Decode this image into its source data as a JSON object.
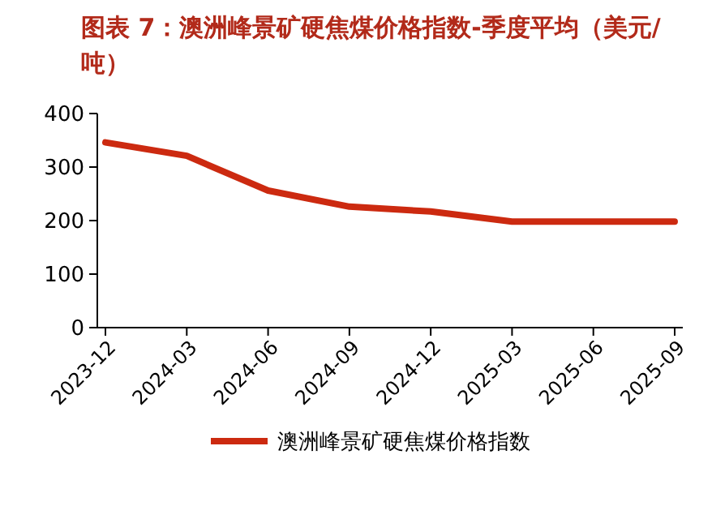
{
  "chart_data": {
    "type": "line",
    "title": "图表 7：澳洲峰景矿硬焦煤价格指数-季度平均（美元/吨）",
    "categories": [
      "2023-12",
      "2024-03",
      "2024-06",
      "2024-09",
      "2024-12",
      "2025-03",
      "2025-06",
      "2025-09"
    ],
    "series": [
      {
        "name": "澳洲峰景矿硬焦煤价格指数",
        "color": "#cc2a10",
        "values": [
          346,
          321,
          256,
          226,
          217,
          198,
          198,
          198
        ]
      }
    ],
    "ylim": [
      0,
      400
    ],
    "yticks": [
      0,
      100,
      200,
      300,
      400
    ],
    "grid": false,
    "legend": "bottom",
    "marker": "none",
    "line_style": "solid"
  }
}
